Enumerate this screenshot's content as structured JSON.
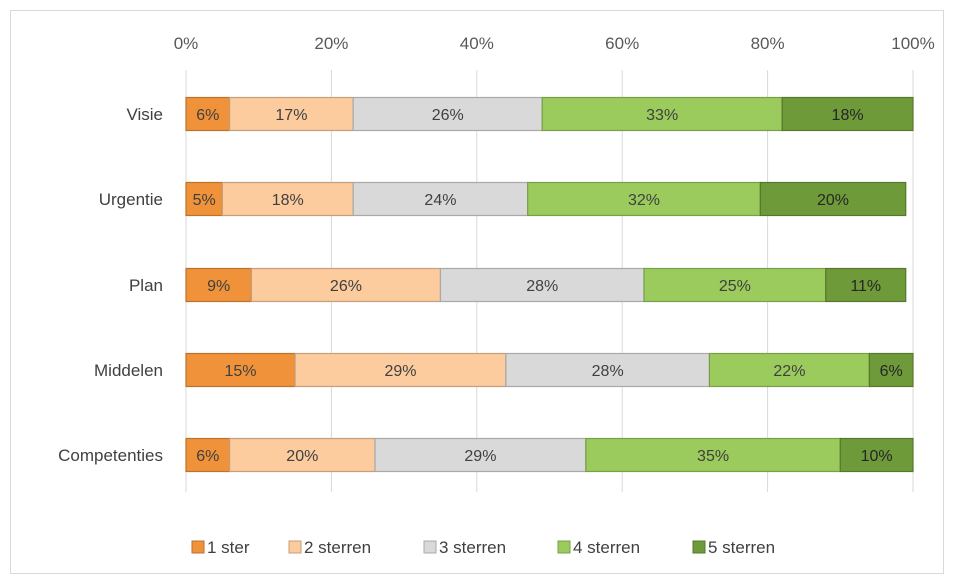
{
  "chart_data": {
    "type": "bar",
    "orientation": "horizontal",
    "stacked": "percent",
    "x_ticks": [
      "0%",
      "20%",
      "40%",
      "60%",
      "80%",
      "100%"
    ],
    "xlim": [
      0,
      100
    ],
    "x_axis_position": "top",
    "grid": true,
    "legend_position": "bottom",
    "categories": [
      "Visie",
      "Urgentie",
      "Plan",
      "Middelen",
      "Competenties"
    ],
    "series": [
      {
        "name": "1 ster",
        "color": "#F0923A",
        "label_color": "#404040",
        "values": [
          6,
          5,
          9,
          15,
          6
        ]
      },
      {
        "name": "2 sterren",
        "color": "#FCCB9E",
        "label_color": "#404040",
        "values": [
          17,
          18,
          26,
          29,
          20
        ]
      },
      {
        "name": "3 sterren",
        "color": "#D9D9D9",
        "label_color": "#404040",
        "values": [
          26,
          24,
          28,
          28,
          29
        ]
      },
      {
        "name": "4 sterren",
        "color": "#9BCB5C",
        "label_color": "#404040",
        "values": [
          33,
          32,
          25,
          22,
          35
        ]
      },
      {
        "name": "5 sterren",
        "color": "#6E9A3A",
        "label_color": "#262626",
        "values": [
          18,
          20,
          11,
          6,
          10
        ]
      }
    ],
    "data_labels": [
      [
        "6%",
        "5%",
        "9%",
        "15%",
        "6%"
      ],
      [
        "17%",
        "18%",
        "26%",
        "29%",
        "20%"
      ],
      [
        "26%",
        "24%",
        "28%",
        "28%",
        "29%"
      ],
      [
        "33%",
        "32%",
        "25%",
        "22%",
        "35%"
      ],
      [
        "18%",
        "20%",
        "11%",
        "6%",
        "10%"
      ]
    ]
  }
}
